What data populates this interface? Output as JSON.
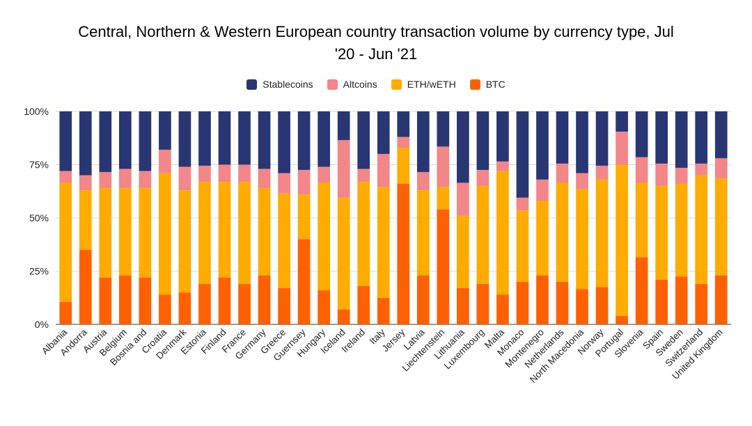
{
  "chart_data": {
    "type": "bar",
    "stacked": true,
    "percent": true,
    "title": "Central, Northern & Western European country transaction volume by currency type, Jul '20 - Jun '21",
    "title_line1": "Central, Northern & Western European country transaction volume by currency type, Jul",
    "title_line2": "'20 - Jun '21",
    "xlabel": "",
    "ylabel": "",
    "ylim": [
      0,
      100
    ],
    "yticks": [
      "0%",
      "25%",
      "50%",
      "75%",
      "100%"
    ],
    "legend_position": "top-center",
    "categories": [
      "Albania",
      "Andorra",
      "Austria",
      "Belgium",
      "Bosnia and",
      "Croatia",
      "Denmark",
      "Estonia",
      "Finland",
      "France",
      "Germany",
      "Greece",
      "Guernsey",
      "Hungary",
      "Iceland",
      "Ireland",
      "Italy",
      "Jersey",
      "Latvia",
      "Liechtenstein",
      "Lithuania",
      "Luxembourg",
      "Malta",
      "Monaco",
      "Montenegro",
      "Netherlands",
      "North Macedonia",
      "Norway",
      "Portugal",
      "Slovenia",
      "Spain",
      "Sweden",
      "Switzerland",
      "United Kingdom"
    ],
    "series": [
      {
        "name": "BTC",
        "color": "#FF6100",
        "values": [
          10.5,
          35,
          22,
          23,
          22,
          14,
          15,
          19,
          22,
          19,
          23,
          17,
          40,
          16,
          7,
          18,
          12.5,
          66,
          23,
          54,
          17,
          19,
          14,
          20,
          23,
          20,
          16.5,
          17.5,
          4,
          31.5,
          21,
          22.5,
          19,
          23
        ]
      },
      {
        "name": "ETH/wETH",
        "color": "#FFAB00",
        "values": [
          56,
          28,
          42,
          41,
          42,
          57,
          48,
          48,
          45,
          48,
          41,
          44.5,
          21,
          50.5,
          52.5,
          49,
          52,
          17,
          40,
          10.5,
          34,
          46,
          58,
          33.5,
          35,
          46.5,
          47,
          50.5,
          71,
          35,
          44,
          43.5,
          51,
          45.5
        ]
      },
      {
        "name": "Altcoins",
        "color": "#F28689",
        "values": [
          5.5,
          7,
          7.5,
          9,
          8,
          11,
          11,
          7.5,
          8,
          8,
          9,
          9.5,
          11.5,
          7.5,
          27,
          6,
          15.5,
          5,
          8.5,
          19,
          15.5,
          7.5,
          4.5,
          6,
          10,
          9,
          7.5,
          6.5,
          15.5,
          12,
          10.5,
          7.5,
          5.5,
          9.5
        ]
      },
      {
        "name": "Stablecoins",
        "color": "#293674",
        "values": [
          28,
          30,
          28.5,
          27,
          28,
          18,
          26,
          25.5,
          25,
          25,
          27,
          29,
          27.5,
          26,
          13.5,
          27,
          20,
          12,
          28.5,
          16.5,
          33.5,
          27.5,
          23.5,
          40.5,
          32,
          24.5,
          29,
          25.5,
          9.5,
          21.5,
          24.5,
          26.5,
          24.5,
          22
        ]
      }
    ],
    "legend_order": [
      "Stablecoins",
      "Altcoins",
      "ETH/wETH",
      "BTC"
    ]
  }
}
